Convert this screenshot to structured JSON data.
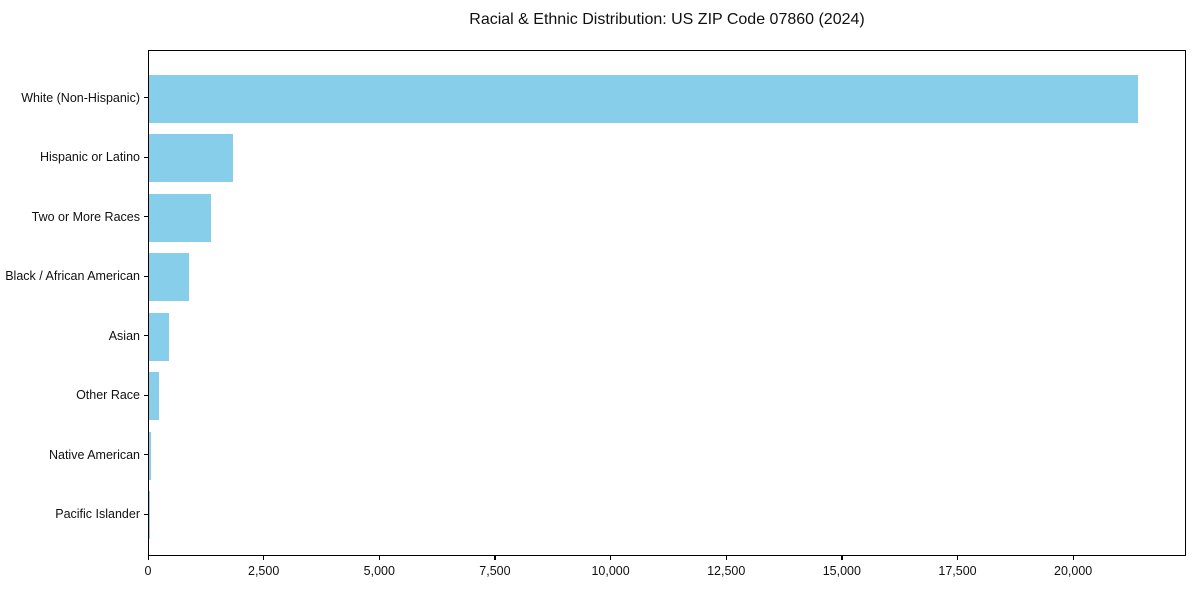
{
  "chart_data": {
    "type": "bar",
    "orientation": "horizontal",
    "title": "Racial & Ethnic Distribution: US ZIP Code 07860 (2024)",
    "categories": [
      "White (Non-Hispanic)",
      "Hispanic or Latino",
      "Two or More Races",
      "Black / African American",
      "Asian",
      "Other Race",
      "Native American",
      "Pacific Islander"
    ],
    "values": [
      21370,
      1810,
      1330,
      870,
      430,
      220,
      35,
      8
    ],
    "xlabel": "",
    "ylabel": "",
    "xlim": [
      0,
      22440
    ],
    "x_ticks": [
      0,
      2500,
      5000,
      7500,
      10000,
      12500,
      15000,
      17500,
      20000
    ],
    "x_tick_labels": [
      "0",
      "2,500",
      "5,000",
      "7,500",
      "10,000",
      "12,500",
      "15,000",
      "17,500",
      "20,000"
    ],
    "bar_color": "#87CEEB",
    "axis_color": "#000000",
    "text_color": "#111111",
    "background_color": "#ffffff",
    "grid": false,
    "legend": null
  }
}
